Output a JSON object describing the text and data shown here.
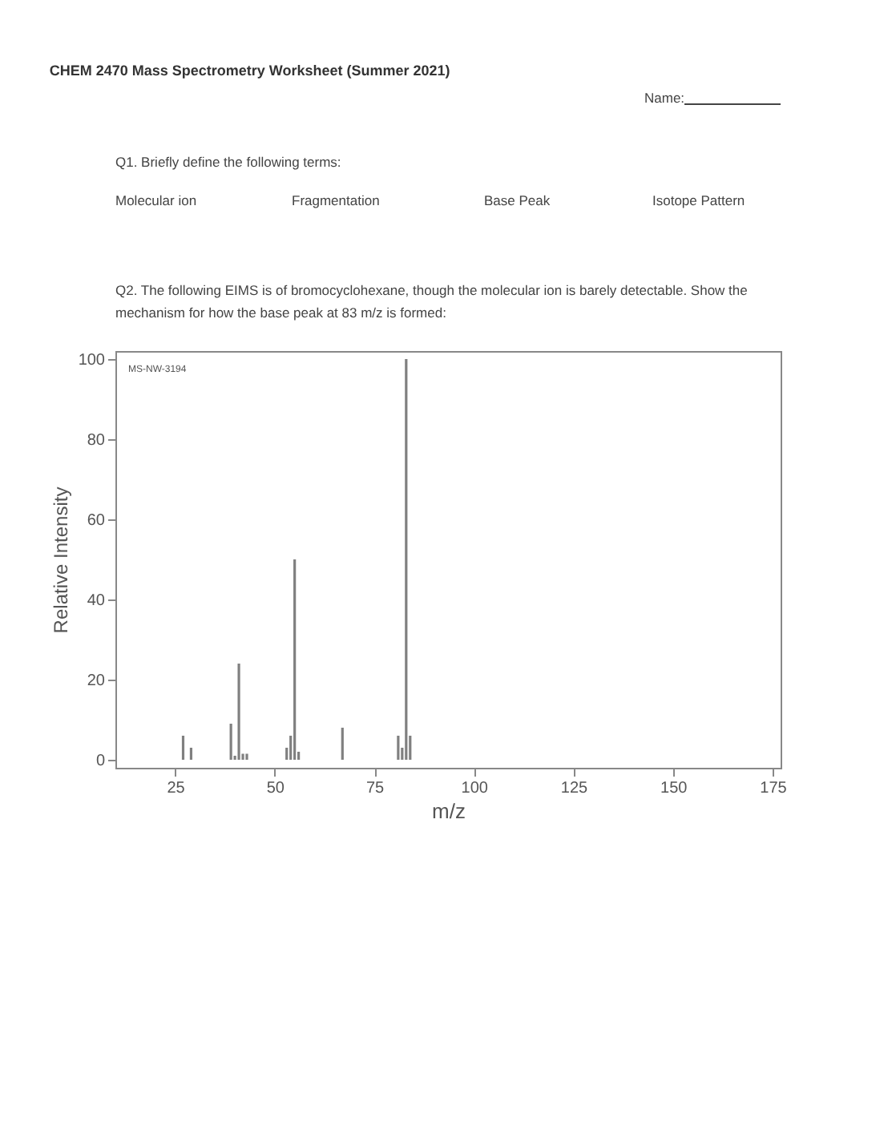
{
  "chart_data": {
    "type": "bar",
    "title": "CHEM 2470 Mass Spectrometry Worksheet (Summer 2021)",
    "xlabel": "m/z",
    "ylabel": "Relative Intensity",
    "x": [
      27,
      29,
      39,
      40,
      41,
      42,
      43,
      53,
      54,
      55,
      56,
      67,
      81,
      82,
      83,
      84
    ],
    "values": [
      6,
      3,
      9,
      1,
      24,
      1.5,
      1.5,
      3,
      6,
      50,
      2,
      8,
      6,
      3,
      100,
      6
    ],
    "color": "#808080",
    "xlim": [
      10,
      177
    ],
    "xticks": [
      25,
      50,
      75,
      100,
      125,
      150,
      175
    ],
    "ylim": [
      -2,
      102
    ],
    "yticks": [
      0,
      20,
      40,
      60,
      80,
      100
    ],
    "grid": false,
    "annotations": [
      "Name:",
      "Q1. Briefly define the following terms:",
      "Molecular ion",
      "Fragmentation",
      "Base Peak",
      "Isotope Pattern",
      "Q2. The following EIMS is of bromocyclohexane, though the molecular ion is barely detectable. Show the",
      "mechanism for how the base peak at 83 m/z is formed:",
      "MS-NW-3194"
    ]
  }
}
